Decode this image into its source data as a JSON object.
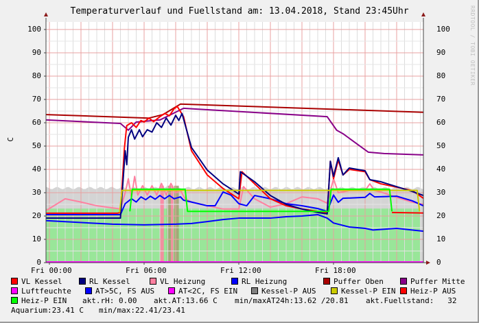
{
  "title": "Temperaturverlauf und Fuellstand am: 13.04.2018, Stand 23:45Uhr",
  "watermark": "RRDTOOL / TOBI OETIKER",
  "chart_data": {
    "type": "line",
    "title": "Temperaturverlauf und Fuellstand am: 13.04.2018, Stand 23:45Uhr",
    "ylabel": "C",
    "ylim": [
      0,
      103
    ],
    "xlim_hours": [
      -0.2,
      23.75
    ],
    "y_ticks": [
      0,
      10,
      20,
      30,
      40,
      50,
      60,
      70,
      80,
      90,
      100
    ],
    "x_ticks": [
      {
        "h": 0,
        "label": "Fri 00:00"
      },
      {
        "h": 6,
        "label": "Fri 06:00"
      },
      {
        "h": 12,
        "label": "Fri 12:00"
      },
      {
        "h": 18,
        "label": "Fri 18:00"
      }
    ],
    "grid": true,
    "legend_placement": "bottom",
    "areas": [
      {
        "name": "Fuellstand",
        "color": "#d4d4d4",
        "value": 32,
        "range": [
          -0.2,
          23.75
        ]
      },
      {
        "name": "Aquarium",
        "color": "#99e699",
        "value": 23.2,
        "range": [
          -0.2,
          23.5
        ]
      }
    ],
    "bars": [
      {
        "color": "#ff80a0",
        "range": [
          7.0,
          7.25
        ],
        "value": 33
      },
      {
        "color": "#a0a070",
        "range": [
          7.45,
          7.7
        ],
        "value": 33
      },
      {
        "color": "#ff80a0",
        "range": [
          7.7,
          7.85
        ],
        "value": 33
      },
      {
        "color": "#a0a070",
        "range": [
          7.9,
          8.2
        ],
        "value": 33
      }
    ],
    "series": [
      {
        "name": "Puffer Oben",
        "color": "#aa0000",
        "points": [
          [
            -0.2,
            63.5
          ],
          [
            6.3,
            62
          ],
          [
            7.2,
            63.5
          ],
          [
            8.3,
            68
          ],
          [
            23.75,
            64.5
          ]
        ]
      },
      {
        "name": "Puffer Mitte",
        "color": "#880088",
        "points": [
          [
            -0.2,
            61.2
          ],
          [
            4.5,
            59.7
          ],
          [
            5,
            56.8
          ],
          [
            5.5,
            60.3
          ],
          [
            7,
            61.2
          ],
          [
            8.5,
            66.2
          ],
          [
            9,
            66
          ],
          [
            17.6,
            62.6
          ],
          [
            18.2,
            56.8
          ],
          [
            18.6,
            55.3
          ],
          [
            20.2,
            47.4
          ],
          [
            21.2,
            46.8
          ],
          [
            23.75,
            46.2
          ]
        ]
      },
      {
        "name": "VL Heizung",
        "color": "#ff80a0",
        "points": [
          [
            -0.2,
            22.4
          ],
          [
            1,
            27.4
          ],
          [
            2,
            26
          ],
          [
            3,
            24.4
          ],
          [
            4,
            23.5
          ],
          [
            4.5,
            23
          ],
          [
            4.8,
            30
          ],
          [
            5,
            36
          ],
          [
            5.2,
            28
          ],
          [
            5.4,
            37
          ],
          [
            5.6,
            29
          ],
          [
            5.9,
            33
          ],
          [
            6.2,
            29
          ],
          [
            6.5,
            33
          ],
          [
            6.8,
            29
          ],
          [
            7.1,
            34
          ],
          [
            7.4,
            29
          ],
          [
            7.7,
            34
          ],
          [
            8,
            30
          ],
          [
            8.3,
            31
          ],
          [
            8.6,
            27.4
          ],
          [
            9,
            26
          ],
          [
            10,
            24.4
          ],
          [
            11,
            23
          ],
          [
            12,
            23
          ],
          [
            12.3,
            32.6
          ],
          [
            13,
            27.4
          ],
          [
            14,
            23.8
          ],
          [
            15,
            25.3
          ],
          [
            16,
            28.2
          ],
          [
            17,
            27.4
          ],
          [
            17.6,
            25.5
          ],
          [
            18,
            36
          ],
          [
            18.3,
            30
          ],
          [
            19,
            30.9
          ],
          [
            20,
            30.9
          ],
          [
            20.3,
            33.8
          ],
          [
            20.6,
            30.9
          ],
          [
            21,
            30.3
          ],
          [
            22,
            28
          ],
          [
            23,
            25.9
          ],
          [
            23.75,
            25
          ]
        ]
      },
      {
        "name": "RL Heizung",
        "color": "#0000ff",
        "points": [
          [
            -0.2,
            20.6
          ],
          [
            4.5,
            20.6
          ],
          [
            4.8,
            25.3
          ],
          [
            5.2,
            27.4
          ],
          [
            5.5,
            26
          ],
          [
            5.8,
            28.2
          ],
          [
            6.1,
            27
          ],
          [
            6.4,
            28.5
          ],
          [
            6.7,
            27.2
          ],
          [
            7,
            28.8
          ],
          [
            7.3,
            27.4
          ],
          [
            7.6,
            28.8
          ],
          [
            7.9,
            27.4
          ],
          [
            8.3,
            28.2
          ],
          [
            8.5,
            26.8
          ],
          [
            9,
            26
          ],
          [
            10,
            24.4
          ],
          [
            10.5,
            24.4
          ],
          [
            11,
            30.3
          ],
          [
            11.5,
            29
          ],
          [
            12,
            25.3
          ],
          [
            12.5,
            24.4
          ],
          [
            13,
            28.8
          ],
          [
            14,
            27.4
          ],
          [
            15,
            25.3
          ],
          [
            16,
            24.4
          ],
          [
            17,
            23.2
          ],
          [
            17.6,
            22
          ],
          [
            18,
            29
          ],
          [
            18.3,
            25.9
          ],
          [
            18.6,
            27.6
          ],
          [
            20,
            28
          ],
          [
            20.3,
            29.7
          ],
          [
            20.6,
            28.2
          ],
          [
            22,
            28.5
          ],
          [
            23,
            26.5
          ],
          [
            23.75,
            24.4
          ]
        ]
      },
      {
        "name": "AT>5C, FS AUS",
        "color": "#0000ff",
        "points": [
          [
            -0.2,
            18
          ],
          [
            4,
            16.5
          ],
          [
            6,
            16.2
          ],
          [
            8,
            16.5
          ],
          [
            9,
            16.8
          ],
          [
            10,
            17.6
          ],
          [
            11,
            18.5
          ],
          [
            12,
            19.1
          ],
          [
            14,
            19.1
          ],
          [
            15,
            19.7
          ],
          [
            16,
            20
          ],
          [
            17,
            20.6
          ],
          [
            17.6,
            19.1
          ],
          [
            18,
            17
          ],
          [
            19,
            15.3
          ],
          [
            20,
            14.7
          ],
          [
            20.5,
            14
          ],
          [
            22,
            14.7
          ],
          [
            23.75,
            13.5
          ]
        ]
      },
      {
        "name": "VL Kessel",
        "color": "#ff0000",
        "points": [
          [
            -0.2,
            21.2
          ],
          [
            4.3,
            21.2
          ],
          [
            4.5,
            21.5
          ],
          [
            4.75,
            49
          ],
          [
            4.9,
            58.8
          ],
          [
            5.2,
            60
          ],
          [
            5.5,
            58
          ],
          [
            5.8,
            61
          ],
          [
            6,
            60.3
          ],
          [
            6.3,
            62
          ],
          [
            6.6,
            60.5
          ],
          [
            7,
            62.6
          ],
          [
            7.3,
            64
          ],
          [
            7.6,
            63
          ],
          [
            7.9,
            66
          ],
          [
            8.1,
            67
          ],
          [
            8.5,
            62.6
          ],
          [
            9,
            48
          ],
          [
            10,
            37.6
          ],
          [
            11,
            31.8
          ],
          [
            12,
            27.4
          ],
          [
            12.2,
            39
          ],
          [
            13,
            33.8
          ],
          [
            14,
            27.4
          ],
          [
            15,
            24.4
          ],
          [
            16,
            23
          ],
          [
            17,
            22
          ],
          [
            17.6,
            21.5
          ],
          [
            17.8,
            43.5
          ],
          [
            18,
            36
          ],
          [
            18.3,
            44
          ],
          [
            18.6,
            37.6
          ],
          [
            19,
            40
          ],
          [
            20,
            39
          ],
          [
            20.3,
            35.6
          ],
          [
            21,
            33.8
          ],
          [
            22,
            32.4
          ],
          [
            23,
            30.9
          ],
          [
            23.75,
            27.6
          ]
        ]
      },
      {
        "name": "RL Kessel",
        "color": "#000080",
        "points": [
          [
            -0.2,
            19.1
          ],
          [
            4.5,
            19.1
          ],
          [
            4.8,
            48
          ],
          [
            4.9,
            42
          ],
          [
            5,
            53.8
          ],
          [
            5.2,
            57
          ],
          [
            5.4,
            53
          ],
          [
            5.7,
            57
          ],
          [
            5.9,
            54
          ],
          [
            6.2,
            57
          ],
          [
            6.5,
            56
          ],
          [
            6.8,
            60
          ],
          [
            7.1,
            58
          ],
          [
            7.4,
            62
          ],
          [
            7.7,
            59
          ],
          [
            8,
            63.2
          ],
          [
            8.2,
            61
          ],
          [
            8.4,
            64
          ],
          [
            9,
            49.4
          ],
          [
            10,
            39.7
          ],
          [
            11,
            33.8
          ],
          [
            12,
            29.4
          ],
          [
            12.1,
            39
          ],
          [
            13,
            34.7
          ],
          [
            14,
            28.8
          ],
          [
            15,
            25
          ],
          [
            16,
            23
          ],
          [
            17,
            21.5
          ],
          [
            17.6,
            20.9
          ],
          [
            17.8,
            43.5
          ],
          [
            18,
            37
          ],
          [
            18.3,
            45
          ],
          [
            18.6,
            37.6
          ],
          [
            19,
            40.6
          ],
          [
            20,
            39.4
          ],
          [
            20.3,
            35.6
          ],
          [
            21,
            34.7
          ],
          [
            22,
            32.6
          ],
          [
            23,
            30.5
          ],
          [
            23.75,
            28.8
          ]
        ]
      },
      {
        "name": "Kessel-P EIN",
        "color": "#cccc00",
        "points": [
          [
            4.45,
            21.5
          ],
          [
            4.6,
            31
          ],
          [
            5.2,
            31
          ],
          [
            21.6,
            31
          ],
          [
            23.3,
            31
          ],
          [
            23.45,
            22
          ]
        ]
      },
      {
        "name": "Heiz-P EIN",
        "color": "#00ff00",
        "points": [
          [
            5.1,
            22
          ],
          [
            5.25,
            31.5
          ],
          [
            8.6,
            31.5
          ],
          [
            8.75,
            22
          ],
          [
            17.7,
            22
          ],
          [
            17.85,
            31.5
          ],
          [
            21.55,
            31.5
          ],
          [
            21.7,
            22
          ]
        ]
      },
      {
        "name": "Heiz-P AUS",
        "color": "#ff0000",
        "points": [
          [
            21.7,
            21.5
          ],
          [
            23.75,
            21.3
          ]
        ]
      },
      {
        "name": "Luftfeuchte",
        "color": "#ff00ff",
        "points": [
          [
            -0.2,
            0.3
          ],
          [
            23.75,
            0.3
          ]
        ]
      }
    ]
  },
  "legend": {
    "items": [
      {
        "label": "VL Kessel",
        "color": "#ff0000"
      },
      {
        "label": "RL Kessel",
        "color": "#000080"
      },
      {
        "label": "VL Heizung",
        "color": "#ff80a0"
      },
      {
        "label": "RL Heizung",
        "color": "#0000ff"
      },
      {
        "label": "Puffer Oben",
        "color": "#aa0000"
      },
      {
        "label": "Puffer Mitte",
        "color": "#880088"
      },
      {
        "label": "Luftfeuchte",
        "color": "#ff00ff"
      },
      {
        "label": "AT>5C, FS AUS",
        "color": "#0000ff"
      },
      {
        "label": "AT<2C, FS EIN",
        "color": "#ff00ff"
      },
      {
        "label": "Kessel-P AUS",
        "color": "#808080"
      },
      {
        "label": "Kessel-P EIN",
        "color": "#cccc00"
      },
      {
        "label": "Heiz-P AUS",
        "color": "#ff0000"
      },
      {
        "label": "Heiz-P EIN",
        "color": "#00ff00"
      }
    ],
    "stats": {
      "rh": "akt.rH: 0.00",
      "at": "akt.AT:13.66 C",
      "minmax_at": "min/maxAT24h:13.62 /20.81",
      "fuellstand": "akt.Fuellstand:   32",
      "aquarium": "Aquarium:23.41 C",
      "aquarium_minmax": "min/max:22.41/23.41"
    }
  }
}
